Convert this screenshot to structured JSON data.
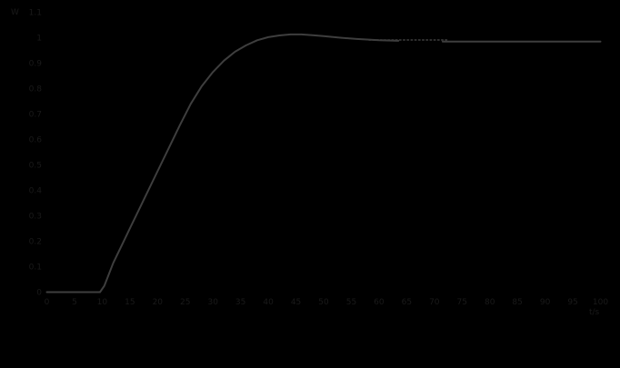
{
  "window": {
    "background_color": "#000000",
    "text_color": "#1a1a1a",
    "curve_color": "#3e3e3e"
  },
  "y_axis": {
    "unit_label": "W",
    "tick_labels": [
      "1.1",
      "1",
      "0.9",
      "0.8",
      "0.7",
      "0.6",
      "0.5",
      "0.4",
      "0.3",
      "0.2",
      "0.1",
      "0"
    ],
    "tick_values": [
      1.1,
      1.0,
      0.9,
      0.8,
      0.7,
      0.6,
      0.5,
      0.4,
      0.3,
      0.2,
      0.1,
      0
    ]
  },
  "x_axis": {
    "unit_label": "t/s",
    "tick_labels": [
      "0",
      "5",
      "10",
      "15",
      "20",
      "25",
      "30",
      "35",
      "40",
      "45",
      "50",
      "55",
      "60",
      "65",
      "70",
      "75",
      "80",
      "85",
      "90",
      "95",
      "100"
    ],
    "tick_values": [
      0,
      5,
      10,
      15,
      20,
      25,
      30,
      35,
      40,
      45,
      50,
      55,
      60,
      65,
      70,
      75,
      80,
      85,
      90,
      95,
      100
    ]
  },
  "chart_data": {
    "type": "line",
    "title": "",
    "xlabel": "t/s",
    "ylabel": "W",
    "xlim": [
      0,
      100
    ],
    "ylim": [
      0,
      1.1
    ],
    "grid": false,
    "legend": "none",
    "axis_frame": false,
    "description": "Step response with ~10 s dead time, steep rise, ~2% overshoot peaking near t=45, settling at ~0.99; a short dotted segment marks the steady-state level where the curve flattens.",
    "series": [
      {
        "name": "step-response-rise",
        "style": "solid",
        "x": [
          0,
          9.6,
          10.4,
          11.2,
          12,
          13,
          14,
          15,
          16,
          18,
          20,
          22,
          24,
          26,
          28,
          30,
          32,
          34,
          36,
          38,
          40,
          42,
          44,
          46,
          48,
          50,
          53,
          56,
          60,
          63.5
        ],
        "y": [
          0,
          0,
          0.025,
          0.07,
          0.115,
          0.16,
          0.205,
          0.25,
          0.295,
          0.385,
          0.475,
          0.565,
          0.655,
          0.74,
          0.81,
          0.865,
          0.91,
          0.945,
          0.97,
          0.99,
          1.002,
          1.009,
          1.013,
          1.013,
          1.01,
          1.006,
          1.0,
          0.995,
          0.99,
          0.988
        ]
      },
      {
        "name": "steady-state-dotted-segment",
        "style": "dotted",
        "x": [
          58.2,
          72.3
        ],
        "y": [
          0.991,
          0.991
        ]
      },
      {
        "name": "step-response-settled",
        "style": "solid",
        "x": [
          71.5,
          76,
          80,
          85,
          90,
          95,
          100
        ],
        "y": [
          0.985,
          0.985,
          0.985,
          0.985,
          0.985,
          0.985,
          0.985
        ]
      }
    ]
  }
}
